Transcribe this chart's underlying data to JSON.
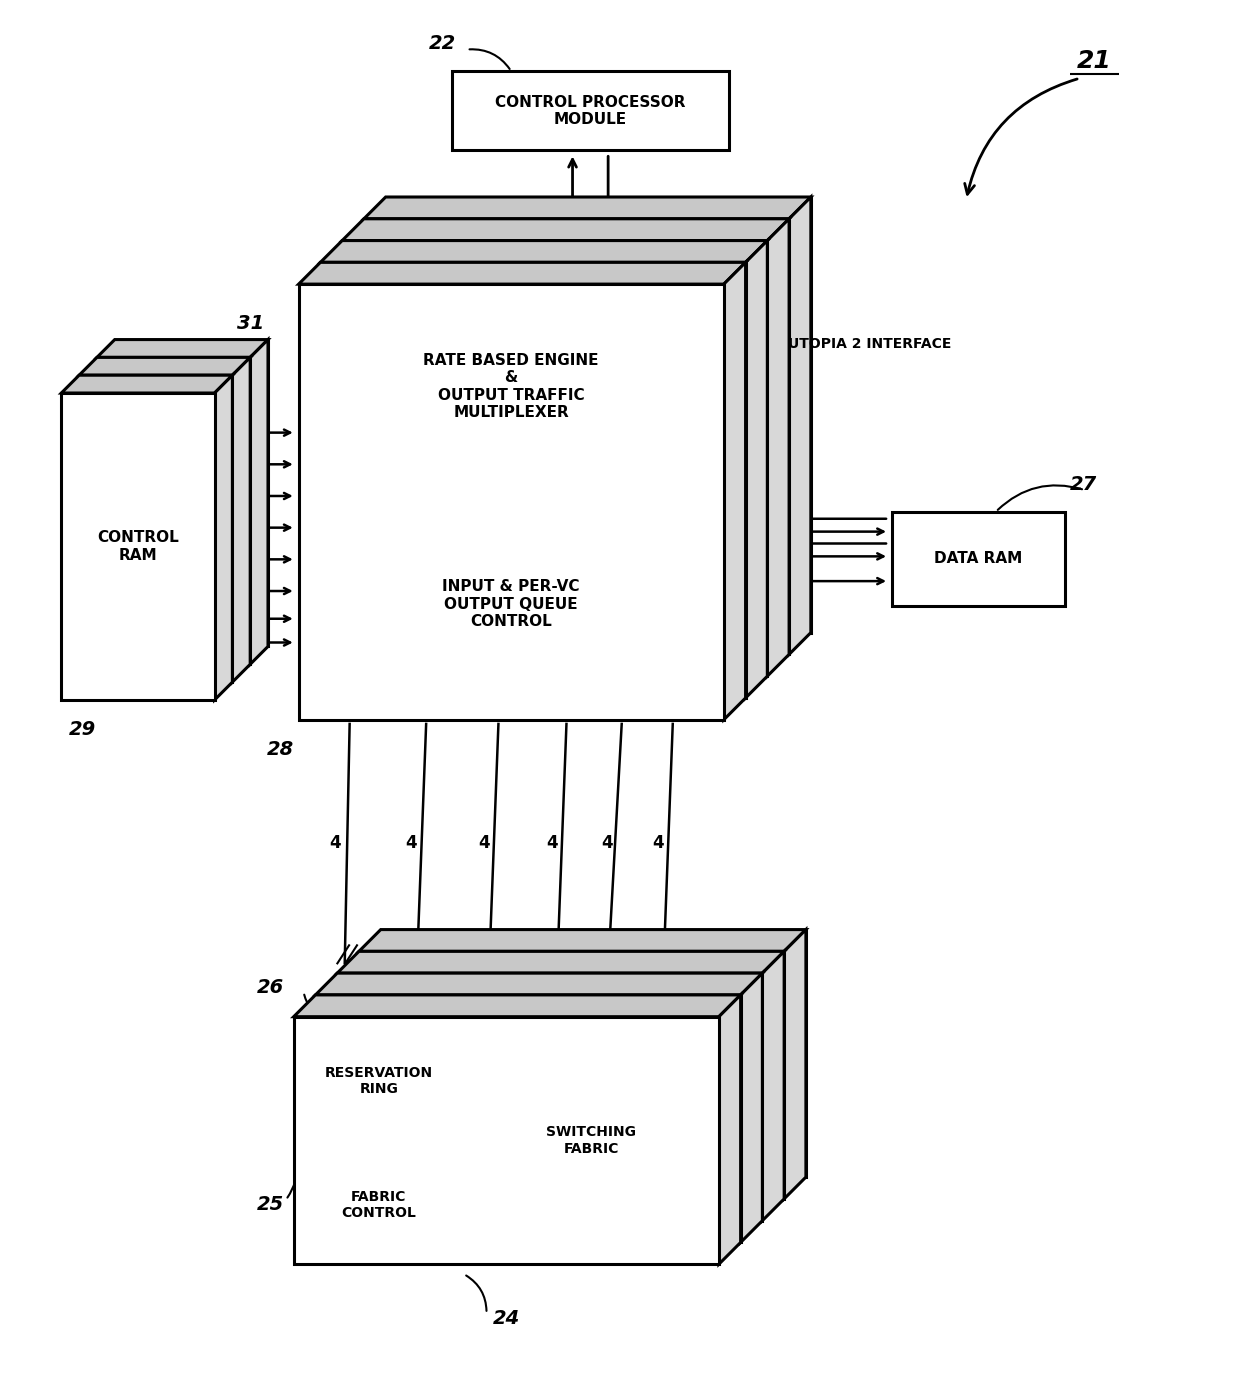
{
  "bg_color": "#ffffff",
  "line_color": "#000000",
  "fig_width": 12.4,
  "fig_height": 13.83,
  "label_21": "21",
  "label_22": "22",
  "label_24": "24",
  "label_25": "25",
  "label_26": "26",
  "label_27": "27",
  "label_28": "28",
  "label_29": "29",
  "label_31": "31",
  "cpm_text": "CONTROL PROCESSOR\nMODULE",
  "data_ram_text": "DATA RAM",
  "control_ram_text": "CONTROL\nRAM",
  "utopia_text": "UTOPIA 2 INTERFACE",
  "main_top_text": "RATE BASED ENGINE\n&\nOUTPUT TRAFFIC\nMULTIPLEXER",
  "main_bottom_text": "INPUT & PER-VC\nOUTPUT QUEUE\nCONTROL",
  "reservation_ring_text": "RESERVATION\nRING",
  "switching_fabric_text": "SWITCHING\nFABRIC",
  "fabric_control_text": "FABRIC\nCONTROL"
}
